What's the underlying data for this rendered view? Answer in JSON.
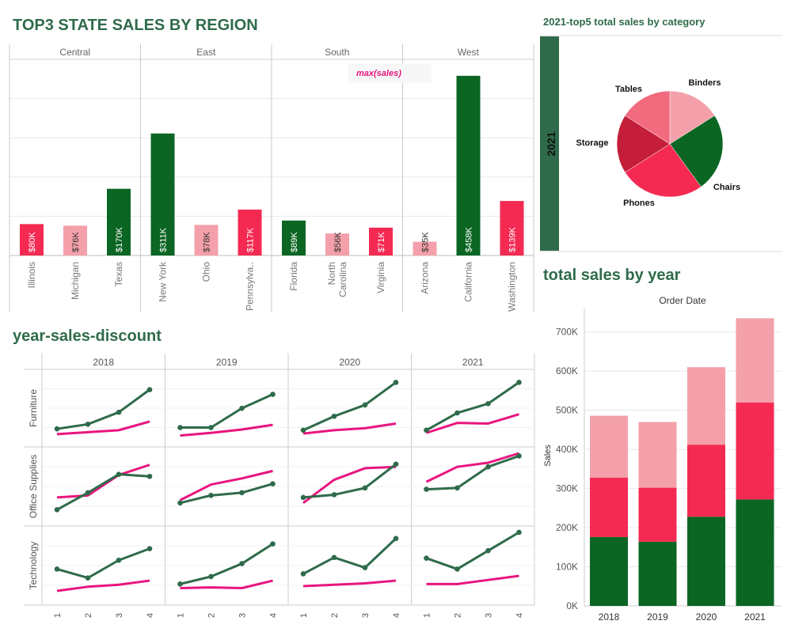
{
  "titles": {
    "state_sales": "TOP3 STATE  SALES BY REGION",
    "pie": "2021-top5  total sales  by category",
    "year_sales": "total sales by year",
    "ysd": "year-sales-discount"
  },
  "colors": {
    "dark_green": "#0b6623",
    "pink": "#f4a0aa",
    "red": "#f42a52",
    "crimson": "#c41e3a",
    "line_green": "#2f6b4a",
    "line_magenta": "#e8157f",
    "band": "#2f6b4a",
    "grid": "#e8e8e8",
    "axis": "#cccccc",
    "tooltip_text": "#e8157f"
  },
  "chart_data": [
    {
      "id": "state_sales",
      "type": "bar",
      "panel_labels": [
        "Central",
        "East",
        "South",
        "West"
      ],
      "tooltip": "max(sales)",
      "ylim": [
        0,
        500000
      ],
      "panels": [
        {
          "name": "Central",
          "bars": [
            {
              "state": "Illinois",
              "value": 80000,
              "label": "$80K",
              "color": "red"
            },
            {
              "state": "Michigan",
              "value": 76000,
              "label": "$76K",
              "color": "pink"
            },
            {
              "state": "Texas",
              "value": 170000,
              "label": "$170K",
              "color": "dark_green"
            }
          ]
        },
        {
          "name": "East",
          "bars": [
            {
              "state": "New York",
              "value": 311000,
              "label": "$311K",
              "color": "dark_green"
            },
            {
              "state": "Ohio",
              "value": 78000,
              "label": "$78K",
              "color": "pink"
            },
            {
              "state": "Pennsylva..",
              "value": 117000,
              "label": "$117K",
              "color": "red"
            }
          ]
        },
        {
          "name": "South",
          "bars": [
            {
              "state": "Florida",
              "value": 89000,
              "label": "$89K",
              "color": "dark_green"
            },
            {
              "state": "North\nCarolina",
              "value": 56000,
              "label": "$56K",
              "color": "pink"
            },
            {
              "state": "Virginia",
              "value": 71000,
              "label": "$71K",
              "color": "red"
            }
          ]
        },
        {
          "name": "West",
          "bars": [
            {
              "state": "Arizona",
              "value": 35000,
              "label": "$35K",
              "color": "pink"
            },
            {
              "state": "California",
              "value": 458000,
              "label": "$458K",
              "color": "dark_green"
            },
            {
              "state": "Washington",
              "value": 139000,
              "label": "$139K",
              "color": "red"
            }
          ]
        }
      ]
    },
    {
      "id": "category_pie",
      "type": "pie",
      "band_label": "2021",
      "slices": [
        {
          "label": "Binders",
          "value": 16,
          "color": "pink"
        },
        {
          "label": "Chairs",
          "value": 24,
          "color": "dark_green"
        },
        {
          "label": "Phones",
          "value": 26,
          "color": "red"
        },
        {
          "label": "Storage",
          "value": 18,
          "color": "crimson"
        },
        {
          "label": "Tables",
          "value": 16,
          "color": "red_light"
        }
      ]
    },
    {
      "id": "sales_by_year",
      "type": "bar",
      "stacked": true,
      "xlabel": "Order Date",
      "ylabel": "Sales",
      "ylim": [
        0,
        760000
      ],
      "yticks": [
        0,
        100000,
        200000,
        300000,
        400000,
        500000,
        600000,
        700000
      ],
      "ytick_labels": [
        "0K",
        "100K",
        "200K",
        "300K",
        "400K",
        "500K",
        "600K",
        "700K"
      ],
      "categories": [
        "2018",
        "2019",
        "2020",
        "2021"
      ],
      "series": [
        {
          "values": [
            176000,
            164000,
            228000,
            272000
          ],
          "color": "dark_green"
        },
        {
          "values": [
            152000,
            138000,
            184000,
            248000
          ],
          "color": "red"
        },
        {
          "values": [
            158000,
            168000,
            198000,
            215000
          ],
          "color": "pink"
        }
      ]
    },
    {
      "id": "year_sales_discount",
      "type": "line",
      "years": [
        "2018",
        "2019",
        "2020",
        "2021"
      ],
      "categories": [
        "Furniture",
        "Office Supplies",
        "Technology"
      ],
      "x": [
        "1",
        "2",
        "3",
        "4"
      ],
      "relative": true,
      "lines": {
        "sales": {
          "marker": true,
          "color": "line_green",
          "values": [
            [
              [
                0.2,
                0.27,
                0.45,
                0.79
              ],
              [
                0.22,
                0.22,
                0.51,
                0.72
              ],
              [
                0.18,
                0.39,
                0.56,
                0.9
              ],
              [
                0.18,
                0.44,
                0.58,
                0.9
              ]
            ]
          ],
          "rows": [
            [
              [
                0.2,
                0.27,
                0.45,
                0.79
              ],
              [
                0.22,
                0.22,
                0.51,
                0.72
              ],
              [
                0.18,
                0.39,
                0.56,
                0.9
              ],
              [
                0.18,
                0.44,
                0.58,
                0.9
              ]
            ],
            [
              [
                0.17,
                0.42,
                0.69,
                0.66
              ],
              [
                0.27,
                0.38,
                0.42,
                0.55
              ],
              [
                0.35,
                0.39,
                0.49,
                0.84
              ],
              [
                0.47,
                0.49,
                0.8,
                0.96
              ]
            ],
            [
              [
                0.46,
                0.33,
                0.59,
                0.76
              ],
              [
                0.24,
                0.35,
                0.54,
                0.83
              ],
              [
                0.39,
                0.63,
                0.48,
                0.91
              ],
              [
                0.62,
                0.46,
                0.73,
                1.0
              ]
            ]
          ]
        },
        "discount": {
          "marker": false,
          "color": "line_magenta",
          "rows": [
            [
              [
                0.12,
                0.15,
                0.18,
                0.31
              ],
              [
                0.1,
                0.14,
                0.19,
                0.26
              ],
              [
                0.13,
                0.18,
                0.21,
                0.28
              ],
              [
                0.14,
                0.29,
                0.28,
                0.42
              ]
            ],
            [
              [
                0.35,
                0.38,
                0.68,
                0.83
              ],
              [
                0.31,
                0.54,
                0.63,
                0.74
              ],
              [
                0.27,
                0.61,
                0.78,
                0.8
              ],
              [
                0.58,
                0.8,
                0.86,
                1.06
              ]
            ],
            [
              [
                0.14,
                0.2,
                0.23,
                0.29
              ],
              [
                0.18,
                0.19,
                0.18,
                0.29
              ],
              [
                0.21,
                0.23,
                0.25,
                0.29
              ],
              [
                0.24,
                0.24,
                0.3,
                0.36
              ]
            ]
          ]
        }
      }
    }
  ]
}
